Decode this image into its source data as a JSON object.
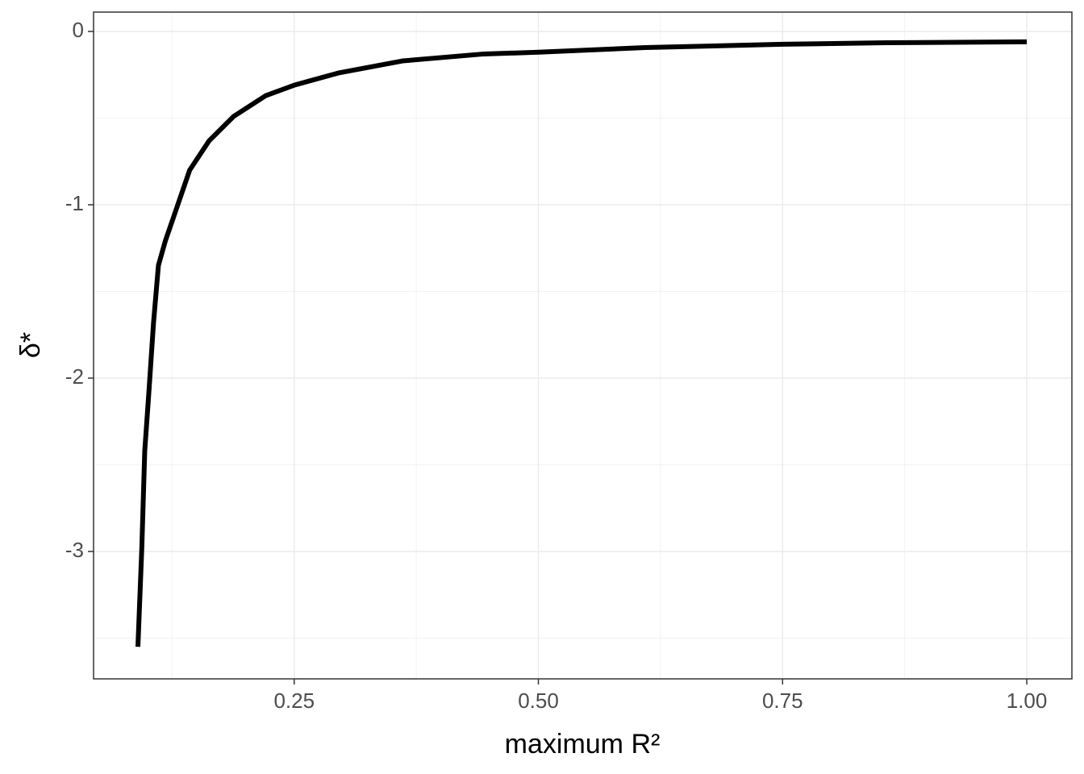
{
  "chart_data": {
    "type": "line",
    "x_label": "maximum R²",
    "y_label": "δ*",
    "x": [
      0.09,
      0.094,
      0.097,
      0.101,
      0.106,
      0.111,
      0.118,
      0.129,
      0.143,
      0.163,
      0.188,
      0.221,
      0.25,
      0.295,
      0.361,
      0.444,
      0.5,
      0.609,
      0.75,
      0.856,
      1.0
    ],
    "series": [
      {
        "color": "#000000",
        "values": [
          -3.55,
          -2.98,
          -2.42,
          -2.1,
          -1.68,
          -1.35,
          -1.21,
          -1.03,
          -0.8,
          -0.63,
          -0.49,
          -0.37,
          -0.31,
          -0.24,
          -0.17,
          -0.13,
          -0.12,
          -0.093,
          -0.074,
          -0.065,
          -0.06
        ]
      }
    ],
    "xlim": [
      0.0446,
      1.0462
    ],
    "ylim": [
      -3.735,
      0.1116
    ],
    "xticks": [
      {
        "value": 0.25,
        "label": "0.25"
      },
      {
        "value": 0.5,
        "label": "0.50"
      },
      {
        "value": 0.75,
        "label": "0.75"
      },
      {
        "value": 1.0,
        "label": "1.00"
      }
    ],
    "yticks": [
      -3,
      -2,
      -1,
      0
    ],
    "grid": true,
    "minor_grid": true
  }
}
